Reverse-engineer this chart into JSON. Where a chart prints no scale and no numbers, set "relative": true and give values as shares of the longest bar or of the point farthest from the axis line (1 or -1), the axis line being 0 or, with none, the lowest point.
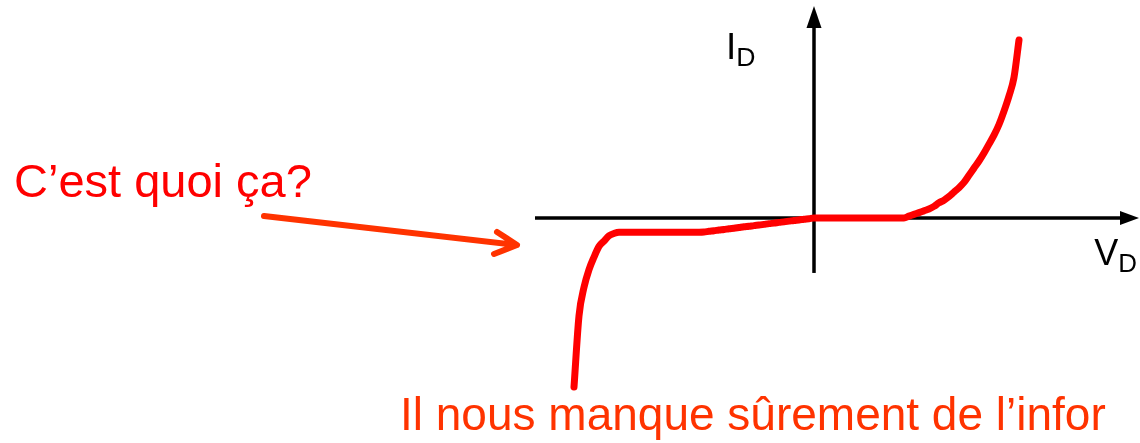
{
  "chart_data": {
    "type": "line",
    "xlabel": "V$_{D}$",
    "ylabel": "I$_{D}$",
    "relative": true,
    "color": "#ff0000",
    "categories": [
      null,
      null,
      null,
      null,
      null,
      null,
      null,
      null,
      null,
      null,
      null,
      null,
      null,
      null,
      null,
      null,
      null,
      null,
      null,
      null,
      null,
      null,
      null,
      null,
      null,
      null,
      null,
      null,
      null,
      null,
      null,
      null,
      null,
      null,
      null,
      null,
      null,
      null,
      null,
      null,
      null,
      null,
      null,
      null,
      null,
      null,
      null,
      null,
      null,
      null,
      null,
      null,
      null,
      null,
      null,
      null,
      null,
      null,
      null,
      null,
      null,
      null,
      null,
      null,
      null,
      null,
      null,
      null,
      null,
      null,
      null,
      null,
      null,
      null,
      null,
      null,
      null,
      null,
      null,
      null,
      null,
      null,
      null,
      null,
      null,
      null,
      null,
      null,
      null,
      null
    ],
    "values": [
      -0.95,
      -0.55,
      -0.39,
      -0.29,
      -0.22,
      -0.16,
      -0.13,
      -0.1,
      -0.087,
      -0.08,
      -0.08,
      -0.08,
      -0.08,
      -0.08,
      -0.08,
      -0.08,
      -0.08,
      -0.08,
      -0.08,
      -0.08,
      -0.08,
      -0.08,
      -0.08,
      -0.08,
      -0.08,
      -0.08,
      -0.079,
      -0.075,
      -0.072,
      -0.068,
      -0.065,
      -0.061,
      -0.058,
      -0.054,
      -0.05,
      -0.047,
      -0.043,
      -0.04,
      -0.036,
      -0.032,
      -0.029,
      -0.025,
      -0.022,
      -0.018,
      -0.014,
      -0.011,
      -0.007,
      -0.004,
      0,
      0,
      0,
      0,
      0,
      0,
      0,
      0,
      0,
      0,
      0,
      0,
      0,
      0,
      0,
      0,
      0,
      0,
      0,
      0.01,
      0.02,
      0.03,
      0.04,
      0.05,
      0.065,
      0.085,
      0.1,
      0.12,
      0.145,
      0.17,
      0.2,
      0.24,
      0.28,
      0.32,
      0.365,
      0.415,
      0.465,
      0.525,
      0.6,
      0.685,
      0.79,
      1
    ],
    "annotations": [
      "C’est quoi ça?",
      "Il nous manque sûrement de l’infor"
    ]
  }
}
